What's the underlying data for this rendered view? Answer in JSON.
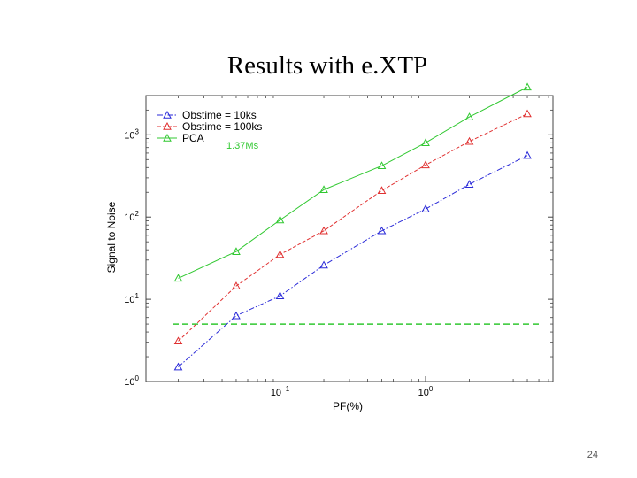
{
  "slide": {
    "title": "Results with e.XTP",
    "page_number": "24"
  },
  "chart_data": {
    "type": "line",
    "title": "",
    "xlabel": "PF(%)",
    "ylabel": "Signal to Noise",
    "xscale": "log",
    "yscale": "log",
    "xlim": [
      0.012,
      7.5
    ],
    "ylim": [
      1,
      3000
    ],
    "x_ticks": [
      {
        "value": 0.1,
        "base": "10",
        "exp": "−1"
      },
      {
        "value": 1,
        "base": "10",
        "exp": "0"
      }
    ],
    "y_ticks": [
      {
        "value": 1,
        "base": "10",
        "exp": "0"
      },
      {
        "value": 10,
        "base": "10",
        "exp": "1"
      },
      {
        "value": 100,
        "base": "10",
        "exp": "2"
      },
      {
        "value": 1000,
        "base": "10",
        "exp": "3"
      }
    ],
    "x": [
      0.02,
      0.05,
      0.1,
      0.2,
      0.5,
      1,
      2,
      5
    ],
    "series": [
      {
        "name": "Obstime = 10ks",
        "color": "#2a2ad8",
        "dash": "dashdot",
        "values": [
          1.5,
          6.3,
          11,
          26,
          68,
          125,
          250,
          560
        ]
      },
      {
        "name": "Obstime = 100ks",
        "color": "#e03030",
        "dash": "dashed",
        "values": [
          3.1,
          14.5,
          35,
          68,
          210,
          430,
          830,
          1800
        ]
      },
      {
        "name": "PCA",
        "color": "#30c830",
        "dash": "solid",
        "values": [
          18,
          38,
          92,
          215,
          420,
          800,
          1650,
          3800
        ]
      }
    ],
    "threshold": {
      "y": 5,
      "color": "#30c830"
    },
    "annotation": "1.37Ms",
    "legend_position": "top-left",
    "grid": false
  }
}
